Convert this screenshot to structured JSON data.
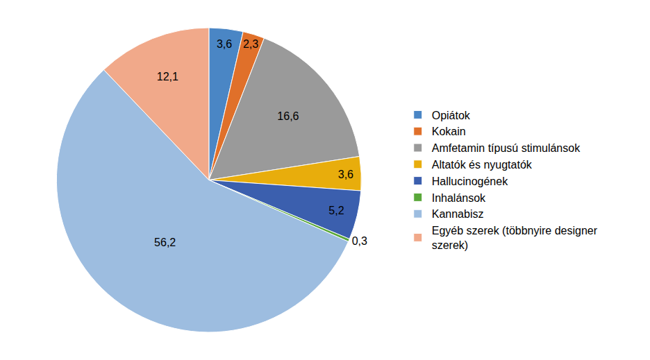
{
  "chart_data": {
    "type": "pie",
    "categories": [
      "Opiátok",
      "Kokain",
      "Amfetamin típusú stimulánsok",
      "Altatók és nyugtatók",
      "Hallucinogének",
      "Inhalánsok",
      "Kannabisz",
      "Egyéb szerek (többnyire designer szerek)"
    ],
    "values": [
      3.6,
      2.3,
      16.6,
      3.6,
      5.2,
      0.3,
      56.2,
      12.1
    ],
    "value_labels": [
      "3,6",
      "2,3",
      "16,6",
      "3,6",
      "5,2",
      "0,3",
      "56,2",
      "12,1"
    ],
    "colors": [
      "#4a86c5",
      "#e0702a",
      "#9a9a9a",
      "#e8ad0c",
      "#3b5fae",
      "#5aa83a",
      "#9dbde0",
      "#f1a98a"
    ],
    "data_labels": true,
    "legend": "right"
  }
}
